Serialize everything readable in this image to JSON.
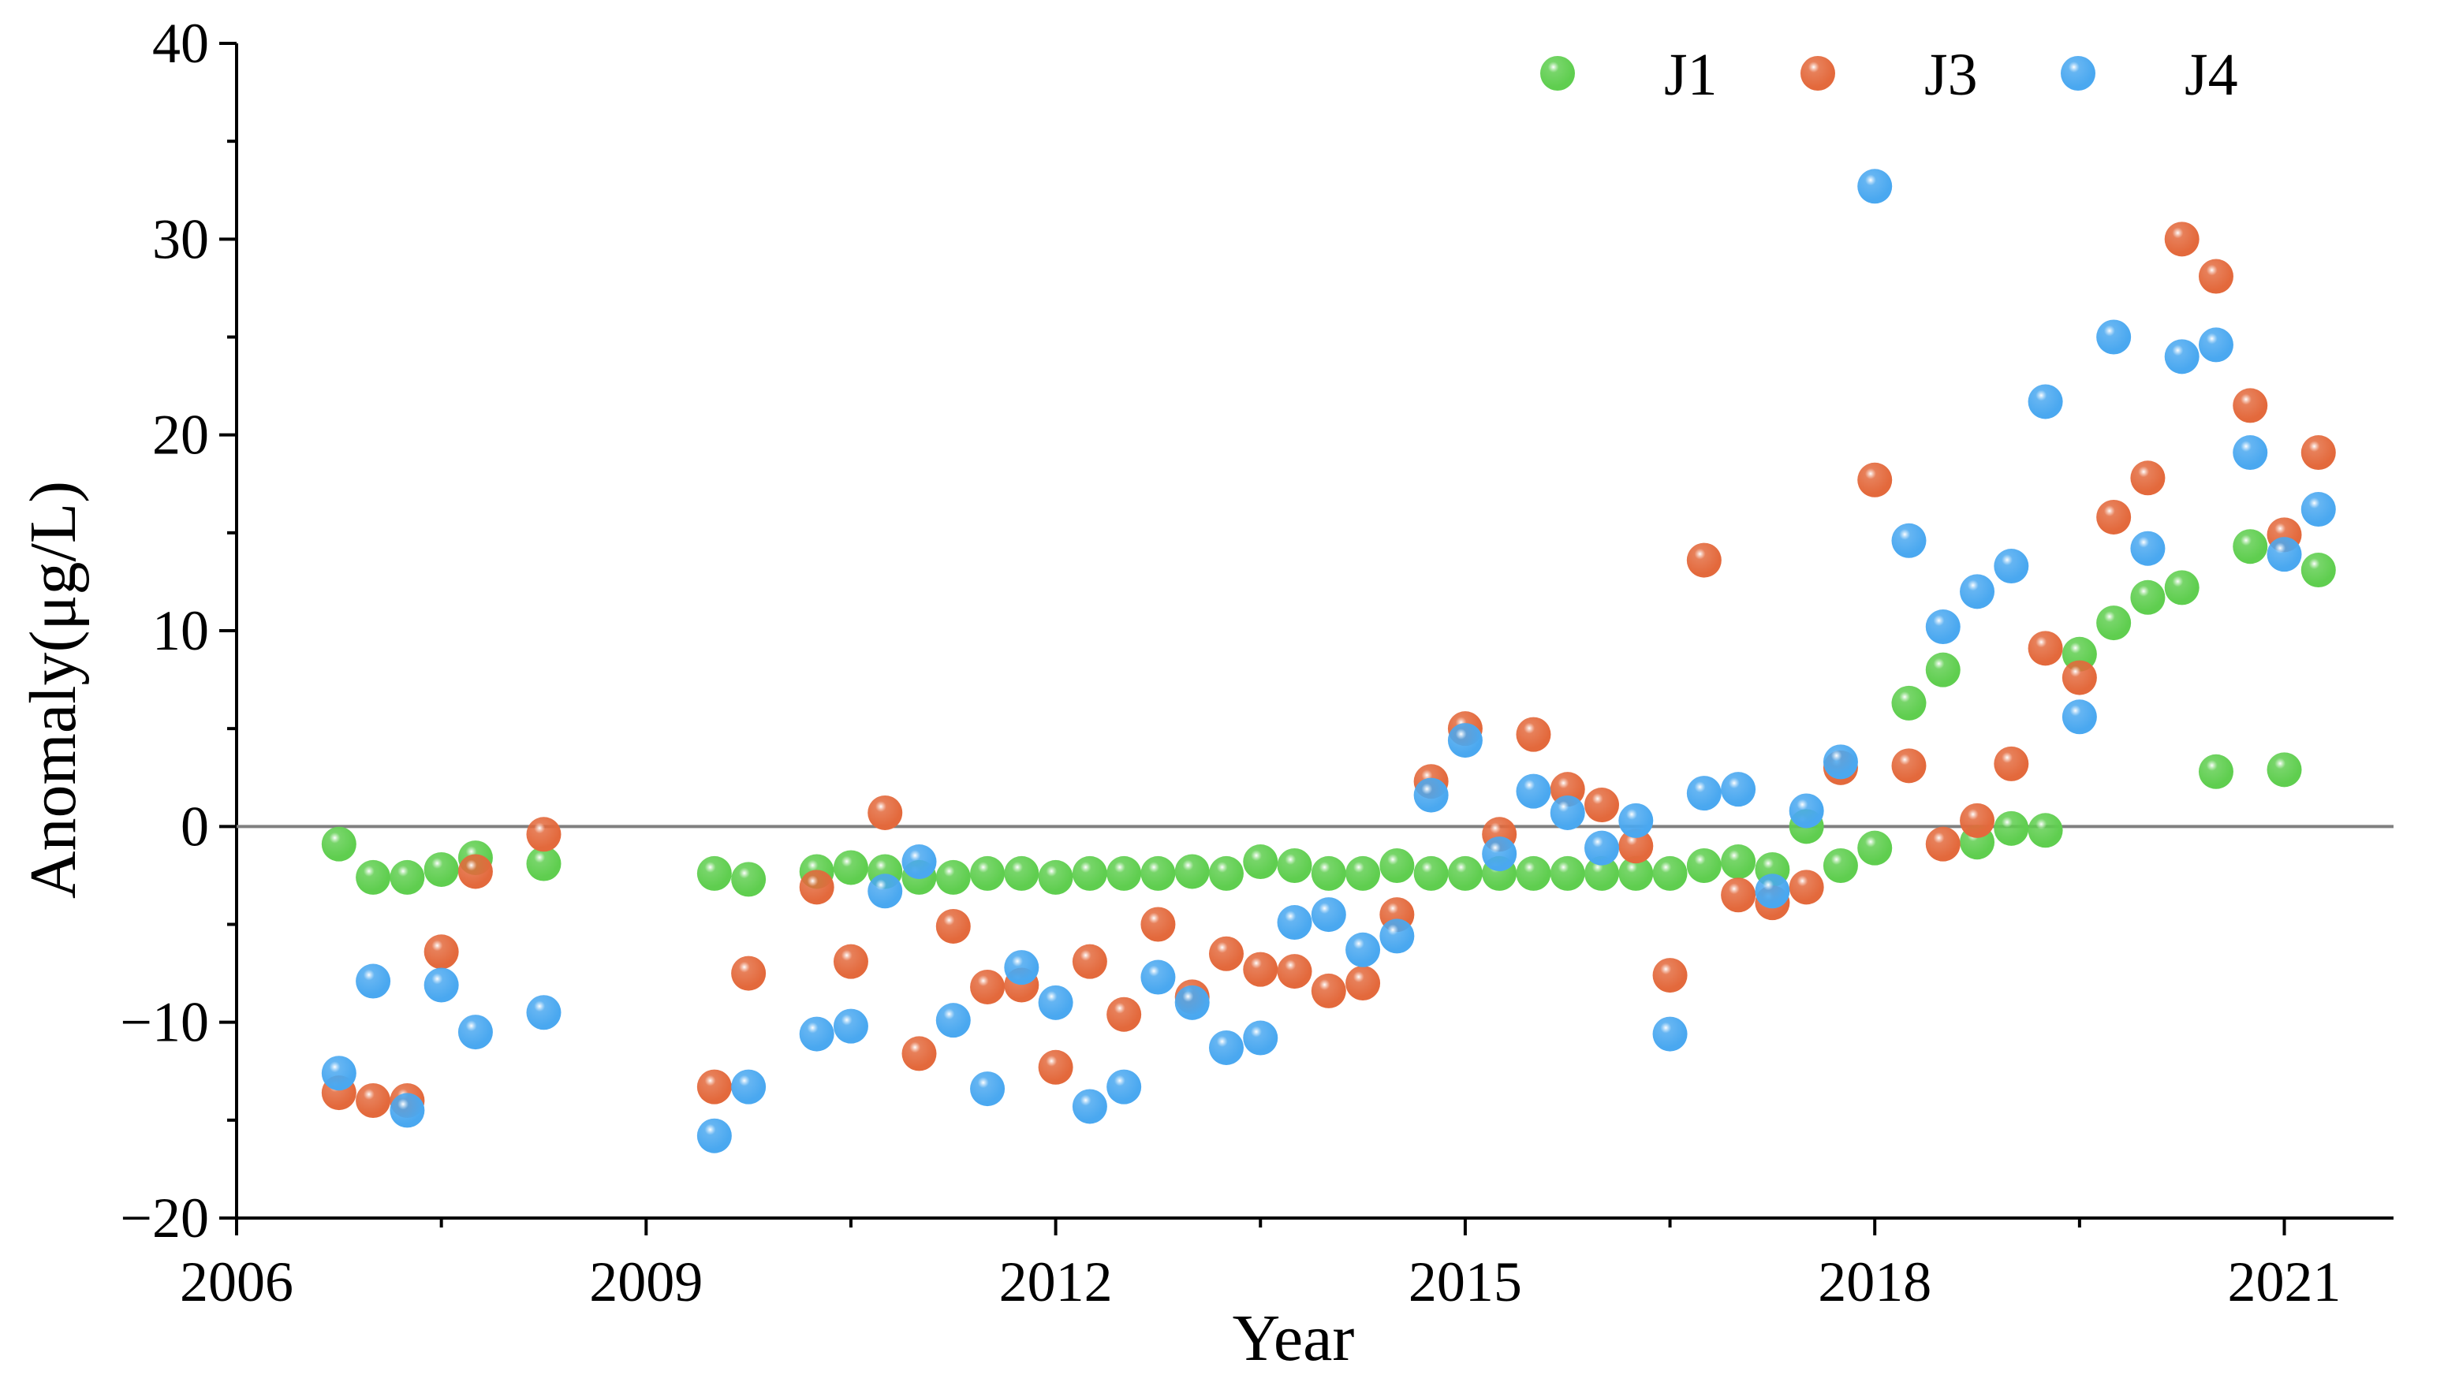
{
  "chart_data": {
    "type": "scatter",
    "title": "",
    "xlabel": "Year",
    "ylabel": "Anomaly(μg/L)",
    "xlim": [
      2006,
      2021.8
    ],
    "ylim": [
      -20,
      40
    ],
    "xticks": [
      2006,
      2009,
      2012,
      2015,
      2018,
      2021
    ],
    "xtick_labels": [
      "2006",
      "2009",
      "2012",
      "2015",
      "2018",
      "2021"
    ],
    "yticks": [
      -20,
      -10,
      0,
      10,
      20,
      30,
      40
    ],
    "ytick_labels": [
      "−20",
      "−10",
      "0",
      "10",
      "20",
      "30",
      "40"
    ],
    "reference_line": 0,
    "legend_position": "top-right",
    "series": [
      {
        "name": "J1",
        "color": "#5fce4f",
        "points": [
          [
            2006.75,
            -0.9
          ],
          [
            2007.0,
            -2.6
          ],
          [
            2007.25,
            -2.6
          ],
          [
            2007.5,
            -2.2
          ],
          [
            2007.75,
            -1.6
          ],
          [
            2008.25,
            -1.9
          ],
          [
            2009.5,
            -2.4
          ],
          [
            2009.75,
            -2.7
          ],
          [
            2010.25,
            -2.3
          ],
          [
            2010.5,
            -2.1
          ],
          [
            2010.75,
            -2.3
          ],
          [
            2011.0,
            -2.6
          ],
          [
            2011.25,
            -2.6
          ],
          [
            2011.5,
            -2.4
          ],
          [
            2011.75,
            -2.4
          ],
          [
            2012.0,
            -2.6
          ],
          [
            2012.25,
            -2.4
          ],
          [
            2012.5,
            -2.4
          ],
          [
            2012.75,
            -2.4
          ],
          [
            2013.0,
            -2.3
          ],
          [
            2013.25,
            -2.4
          ],
          [
            2013.5,
            -1.8
          ],
          [
            2013.75,
            -2.0
          ],
          [
            2014.0,
            -2.4
          ],
          [
            2014.25,
            -2.4
          ],
          [
            2014.5,
            -2.0
          ],
          [
            2014.75,
            -2.4
          ],
          [
            2015.0,
            -2.4
          ],
          [
            2015.25,
            -2.4
          ],
          [
            2015.5,
            -2.4
          ],
          [
            2015.75,
            -2.4
          ],
          [
            2016.0,
            -2.4
          ],
          [
            2016.25,
            -2.4
          ],
          [
            2016.5,
            -2.4
          ],
          [
            2016.75,
            -2.0
          ],
          [
            2017.0,
            -1.8
          ],
          [
            2017.25,
            -2.2
          ],
          [
            2017.5,
            0.0
          ],
          [
            2017.75,
            -2.0
          ],
          [
            2018.0,
            -1.1
          ],
          [
            2018.25,
            6.3
          ],
          [
            2018.5,
            8.0
          ],
          [
            2018.75,
            -0.8
          ],
          [
            2019.0,
            -0.1
          ],
          [
            2019.25,
            -0.2
          ],
          [
            2019.5,
            8.8
          ],
          [
            2019.75,
            10.4
          ],
          [
            2020.0,
            11.7
          ],
          [
            2020.25,
            12.2
          ],
          [
            2020.5,
            2.8
          ],
          [
            2020.75,
            14.3
          ],
          [
            2021.0,
            2.9
          ],
          [
            2021.25,
            13.1
          ]
        ]
      },
      {
        "name": "J3",
        "color": "#e3693c",
        "points": [
          [
            2006.75,
            -13.6
          ],
          [
            2007.0,
            -14.0
          ],
          [
            2007.25,
            -14.0
          ],
          [
            2007.5,
            -6.4
          ],
          [
            2007.75,
            -2.3
          ],
          [
            2008.25,
            -0.4
          ],
          [
            2009.5,
            -13.3
          ],
          [
            2009.75,
            -7.5
          ],
          [
            2010.25,
            -3.1
          ],
          [
            2010.5,
            -6.9
          ],
          [
            2010.75,
            0.7
          ],
          [
            2011.0,
            -11.6
          ],
          [
            2011.25,
            -5.1
          ],
          [
            2011.5,
            -8.2
          ],
          [
            2011.75,
            -8.1
          ],
          [
            2012.0,
            -12.3
          ],
          [
            2012.25,
            -6.9
          ],
          [
            2012.5,
            -9.6
          ],
          [
            2012.75,
            -5.0
          ],
          [
            2013.0,
            -8.7
          ],
          [
            2013.25,
            -6.5
          ],
          [
            2013.5,
            -7.3
          ],
          [
            2013.75,
            -7.4
          ],
          [
            2014.0,
            -8.4
          ],
          [
            2014.25,
            -8.0
          ],
          [
            2014.5,
            -4.5
          ],
          [
            2014.75,
            2.3
          ],
          [
            2015.0,
            5.0
          ],
          [
            2015.25,
            -0.4
          ],
          [
            2015.5,
            4.7
          ],
          [
            2015.75,
            1.9
          ],
          [
            2016.0,
            1.1
          ],
          [
            2016.25,
            -1.0
          ],
          [
            2016.5,
            -7.6
          ],
          [
            2016.75,
            13.6
          ],
          [
            2017.0,
            -3.5
          ],
          [
            2017.25,
            -3.9
          ],
          [
            2017.5,
            -3.1
          ],
          [
            2017.75,
            3.0
          ],
          [
            2018.0,
            17.7
          ],
          [
            2018.25,
            3.1
          ],
          [
            2018.5,
            -0.9
          ],
          [
            2018.75,
            0.3
          ],
          [
            2019.0,
            3.2
          ],
          [
            2019.25,
            9.1
          ],
          [
            2019.5,
            7.6
          ],
          [
            2019.75,
            15.8
          ],
          [
            2020.0,
            17.8
          ],
          [
            2020.25,
            30.0
          ],
          [
            2020.5,
            28.1
          ],
          [
            2020.75,
            21.5
          ],
          [
            2021.0,
            14.9
          ],
          [
            2021.25,
            19.1
          ]
        ]
      },
      {
        "name": "J4",
        "color": "#4aa8f0",
        "points": [
          [
            2006.75,
            -12.6
          ],
          [
            2007.0,
            -7.9
          ],
          [
            2007.25,
            -14.5
          ],
          [
            2007.5,
            -8.1
          ],
          [
            2007.75,
            -10.5
          ],
          [
            2008.25,
            -9.5
          ],
          [
            2009.5,
            -15.8
          ],
          [
            2009.75,
            -13.3
          ],
          [
            2010.25,
            -10.6
          ],
          [
            2010.5,
            -10.2
          ],
          [
            2010.75,
            -3.3
          ],
          [
            2011.0,
            -1.8
          ],
          [
            2011.25,
            -9.9
          ],
          [
            2011.5,
            -13.4
          ],
          [
            2011.75,
            -7.2
          ],
          [
            2012.0,
            -9.0
          ],
          [
            2012.25,
            -14.3
          ],
          [
            2012.5,
            -13.3
          ],
          [
            2012.75,
            -7.7
          ],
          [
            2013.0,
            -9.0
          ],
          [
            2013.25,
            -11.3
          ],
          [
            2013.5,
            -10.8
          ],
          [
            2013.75,
            -4.9
          ],
          [
            2014.0,
            -4.5
          ],
          [
            2014.25,
            -6.3
          ],
          [
            2014.5,
            -5.6
          ],
          [
            2014.75,
            1.6
          ],
          [
            2015.0,
            4.4
          ],
          [
            2015.25,
            -1.4
          ],
          [
            2015.5,
            1.8
          ],
          [
            2015.75,
            0.7
          ],
          [
            2016.0,
            -1.1
          ],
          [
            2016.25,
            0.3
          ],
          [
            2016.5,
            -10.6
          ],
          [
            2016.75,
            1.7
          ],
          [
            2017.0,
            1.9
          ],
          [
            2017.25,
            -3.3
          ],
          [
            2017.5,
            0.8
          ],
          [
            2017.75,
            3.3
          ],
          [
            2018.0,
            32.7
          ],
          [
            2018.25,
            14.6
          ],
          [
            2018.5,
            10.2
          ],
          [
            2018.75,
            12.0
          ],
          [
            2019.0,
            13.3
          ],
          [
            2019.25,
            21.7
          ],
          [
            2019.5,
            5.6
          ],
          [
            2019.75,
            25.0
          ],
          [
            2020.0,
            14.2
          ],
          [
            2020.25,
            24.0
          ],
          [
            2020.5,
            24.6
          ],
          [
            2020.75,
            19.1
          ],
          [
            2021.0,
            13.9
          ],
          [
            2021.25,
            16.2
          ]
        ]
      }
    ]
  }
}
